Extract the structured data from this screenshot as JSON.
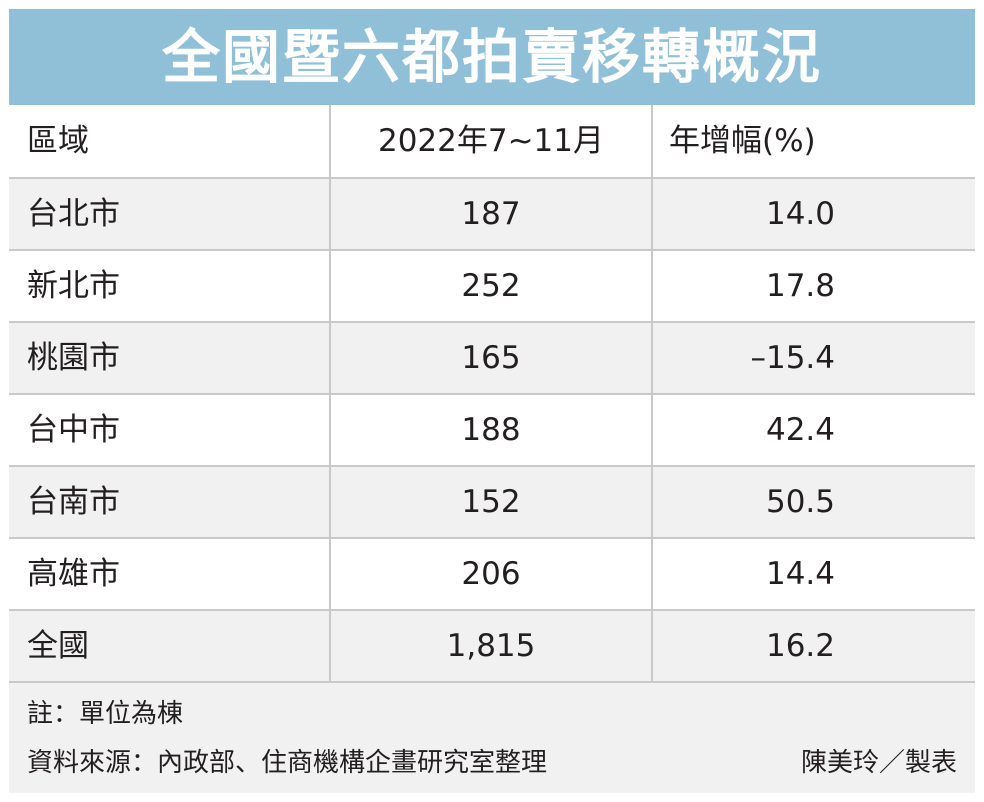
{
  "title": "全國暨六都拍賣移轉概況",
  "table": {
    "headers": [
      "區域",
      "2022年7~11月",
      "年增幅(%)"
    ],
    "rows": [
      {
        "region": "台北市",
        "count": "187",
        "growth": "14.0"
      },
      {
        "region": "新北市",
        "count": "252",
        "growth": "17.8"
      },
      {
        "region": "桃園市",
        "count": "165",
        "growth": "–15.4"
      },
      {
        "region": "台中市",
        "count": "188",
        "growth": "42.4"
      },
      {
        "region": "台南市",
        "count": "152",
        "growth": "50.5"
      },
      {
        "region": "高雄市",
        "count": "206",
        "growth": "14.4"
      },
      {
        "region": "全國",
        "count": "1,815",
        "growth": "16.2"
      }
    ]
  },
  "footer": {
    "note": "註：單位為棟",
    "source": "資料來源：內政部、住商機構企畫研究室整理",
    "credit": "陳美玲／製表"
  },
  "colors": {
    "title_background": "#8fc0d8",
    "title_text": "#ffffff",
    "stripe": "#f1f1f1",
    "grid_line": "#c9c9c9",
    "text": "#231f20"
  }
}
